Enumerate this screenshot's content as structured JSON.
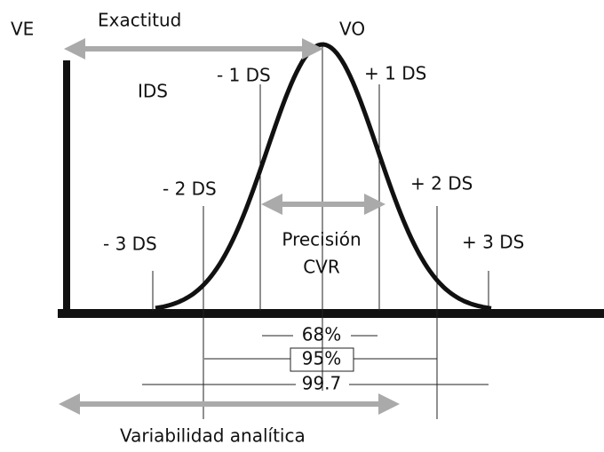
{
  "labels": {
    "ve": "VE",
    "exactitud": "Exactitud",
    "vo": "VO",
    "ids": "IDS",
    "minus1": "- 1 DS",
    "plus1": "+ 1 DS",
    "minus2": "- 2 DS",
    "plus2": "+ 2 DS",
    "minus3": "- 3 DS",
    "plus3": "+ 3 DS",
    "precision": "Precisión",
    "cvr": "CVR",
    "p68": "68%",
    "p95": "95%",
    "p997": "99.7",
    "variabilidad": "Variabilidad analítica"
  }
}
